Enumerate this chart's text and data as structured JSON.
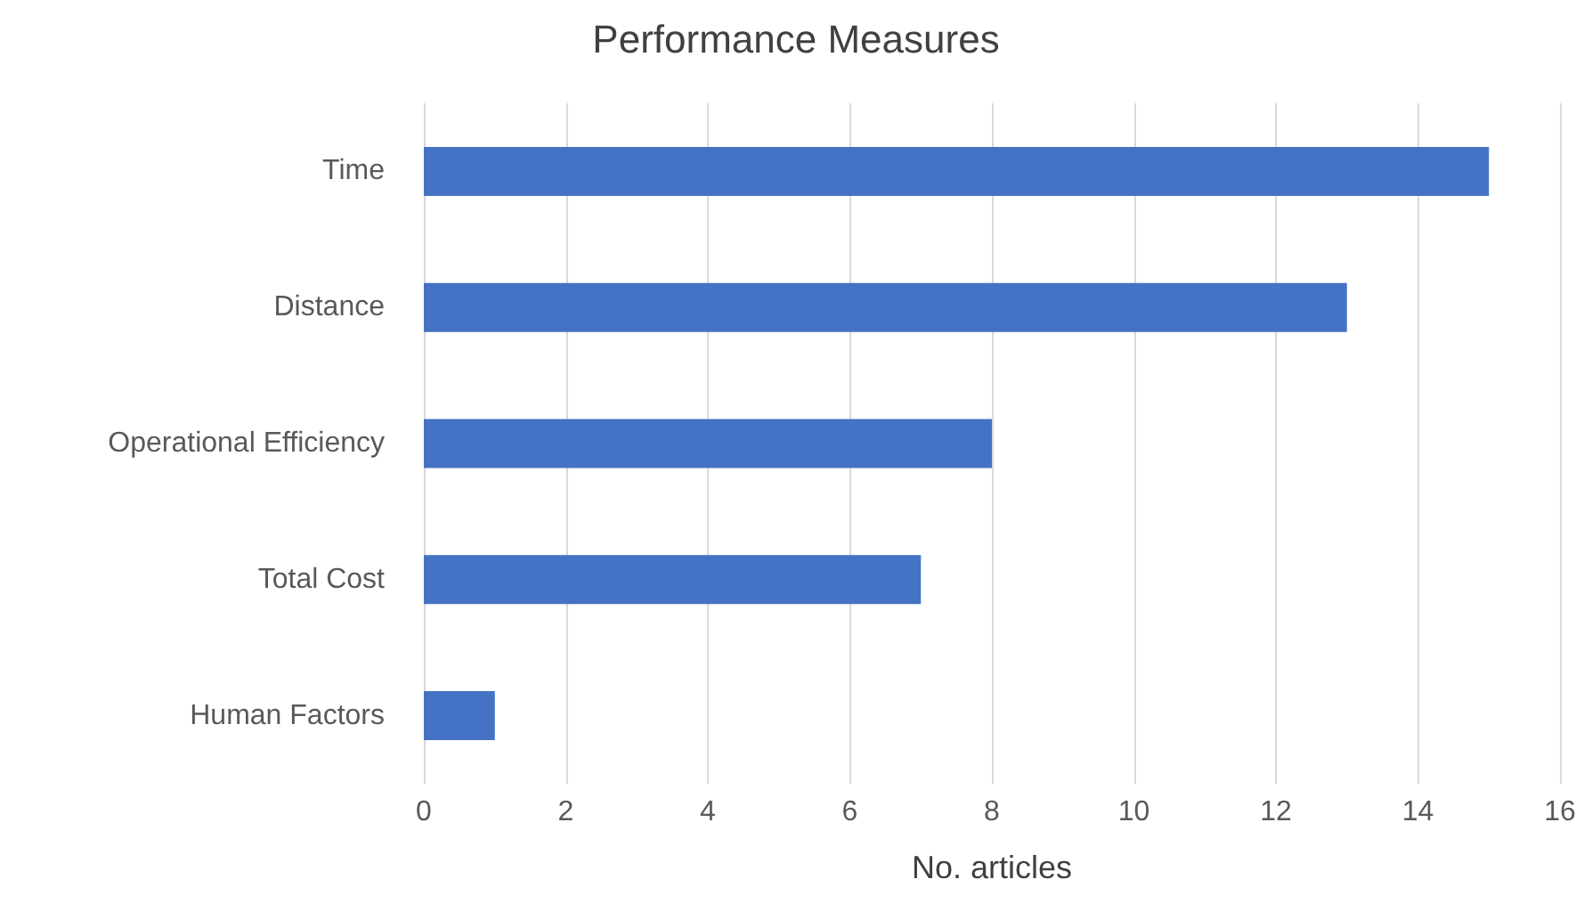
{
  "chart_data": {
    "type": "bar",
    "orientation": "horizontal",
    "title": "Performance Measures",
    "xlabel": "No. articles",
    "categories": [
      "Time",
      "Distance",
      "Operational Efficiency",
      "Total Cost",
      "Human Factors"
    ],
    "values": [
      15,
      13,
      8,
      7,
      1
    ],
    "color": "#4472c4",
    "xlim": [
      0,
      16
    ],
    "xticks": [
      0,
      2,
      4,
      6,
      8,
      10,
      12,
      14,
      16
    ],
    "grid": "x"
  }
}
